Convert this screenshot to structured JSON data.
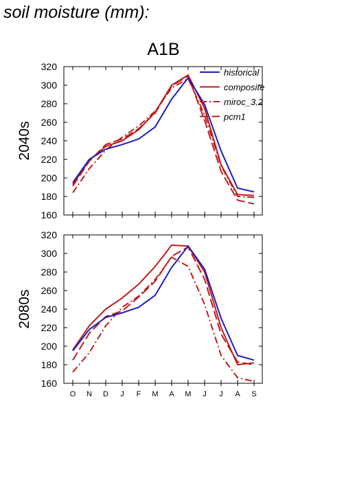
{
  "page": {
    "title": "soil moisture (mm):"
  },
  "chart_data": [
    {
      "type": "line",
      "panel": "2040s",
      "scenario": "A1B",
      "ylabel": "2040s",
      "categories": [
        "O",
        "N",
        "D",
        "J",
        "F",
        "M",
        "A",
        "M",
        "J",
        "J",
        "A",
        "S"
      ],
      "ylim": [
        160,
        320
      ],
      "yticks": [
        160,
        180,
        200,
        220,
        240,
        260,
        280,
        300,
        320
      ],
      "grid": false,
      "legend": "top-right",
      "series": [
        {
          "name": "historical",
          "color": "#1c1cbf",
          "style": "solid",
          "values": [
            195,
            220,
            231,
            236,
            242,
            255,
            285,
            308,
            279,
            229,
            189,
            185
          ]
        },
        {
          "name": "composite",
          "color": "#bf1c1c",
          "style": "solid",
          "values": [
            193,
            219,
            234,
            240,
            252,
            271,
            300,
            311,
            275,
            214,
            182,
            181
          ]
        },
        {
          "name": "miroc_3.2",
          "color": "#bf1c1c",
          "style": "dashdot",
          "values": [
            184,
            210,
            230,
            244,
            256,
            272,
            297,
            307,
            268,
            213,
            180,
            179
          ]
        },
        {
          "name": "pcm1",
          "color": "#bf1c1c",
          "style": "longdash",
          "values": [
            191,
            218,
            236,
            242,
            253,
            270,
            299,
            310,
            262,
            207,
            176,
            172
          ]
        }
      ]
    },
    {
      "type": "line",
      "panel": "2080s",
      "scenario": "A1B",
      "ylabel": "2080s",
      "categories": [
        "O",
        "N",
        "D",
        "J",
        "F",
        "M",
        "A",
        "M",
        "J",
        "J",
        "A",
        "S"
      ],
      "ylim": [
        160,
        320
      ],
      "yticks": [
        160,
        180,
        200,
        220,
        240,
        260,
        280,
        300,
        320
      ],
      "grid": false,
      "legend": "none",
      "series": [
        {
          "name": "historical",
          "color": "#1c1cbf",
          "style": "solid",
          "values": [
            195,
            218,
            231,
            236,
            242,
            255,
            285,
            308,
            283,
            230,
            190,
            185
          ]
        },
        {
          "name": "composite",
          "color": "#bf1c1c",
          "style": "solid",
          "values": [
            196,
            222,
            240,
            252,
            267,
            286,
            309,
            308,
            280,
            220,
            180,
            182
          ]
        },
        {
          "name": "miroc_3.2",
          "color": "#bf1c1c",
          "style": "dashdot",
          "values": [
            172,
            193,
            222,
            242,
            254,
            272,
            296,
            286,
            245,
            190,
            166,
            162
          ]
        },
        {
          "name": "pcm1",
          "color": "#bf1c1c",
          "style": "longdash",
          "values": [
            185,
            214,
            232,
            238,
            253,
            270,
            297,
            307,
            272,
            213,
            183,
            180
          ]
        }
      ]
    }
  ]
}
